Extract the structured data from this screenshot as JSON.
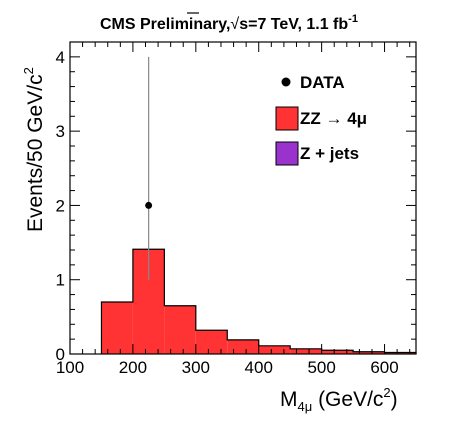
{
  "chart_data": {
    "type": "bar",
    "title_parts": {
      "prefix": "CMS Preliminary,",
      "root_symbol": "√",
      "rest": "s=7 TeV, 1.1 fb",
      "sup": "-1"
    },
    "ylabel_parts": {
      "main": "Events/50 GeV/c",
      "sup": "2"
    },
    "xlabel_parts": {
      "main": "M",
      "sub": "4μ",
      "unit": " (GeV/c",
      "sup": "2",
      "close": ")"
    },
    "xlim": [
      100,
      650
    ],
    "ylim": [
      0,
      4.2
    ],
    "x_ticks": [
      100,
      200,
      300,
      400,
      500,
      600
    ],
    "y_ticks": [
      0,
      1,
      2,
      3,
      4
    ],
    "bin_width": 50,
    "series": [
      {
        "name": "ZZ → 4μ",
        "color": "#ff3333",
        "bins": [
          {
            "low": 150,
            "high": 200,
            "value": 0.7
          },
          {
            "low": 200,
            "high": 250,
            "value": 1.41
          },
          {
            "low": 250,
            "high": 300,
            "value": 0.65
          },
          {
            "low": 300,
            "high": 350,
            "value": 0.32
          },
          {
            "low": 350,
            "high": 400,
            "value": 0.19
          },
          {
            "low": 400,
            "high": 450,
            "value": 0.11
          },
          {
            "low": 450,
            "high": 500,
            "value": 0.07
          },
          {
            "low": 500,
            "high": 550,
            "value": 0.05
          },
          {
            "low": 550,
            "high": 600,
            "value": 0.03
          },
          {
            "low": 600,
            "high": 650,
            "value": 0.02
          }
        ]
      },
      {
        "name": "Z + jets",
        "color": "#9933cc",
        "bins": []
      }
    ],
    "data_points": {
      "name": "DATA",
      "points": [
        {
          "x": 225,
          "y": 2,
          "err_low": 1.0,
          "err_high": 4.0
        }
      ]
    },
    "legend_position": "top-right",
    "grid": false
  }
}
